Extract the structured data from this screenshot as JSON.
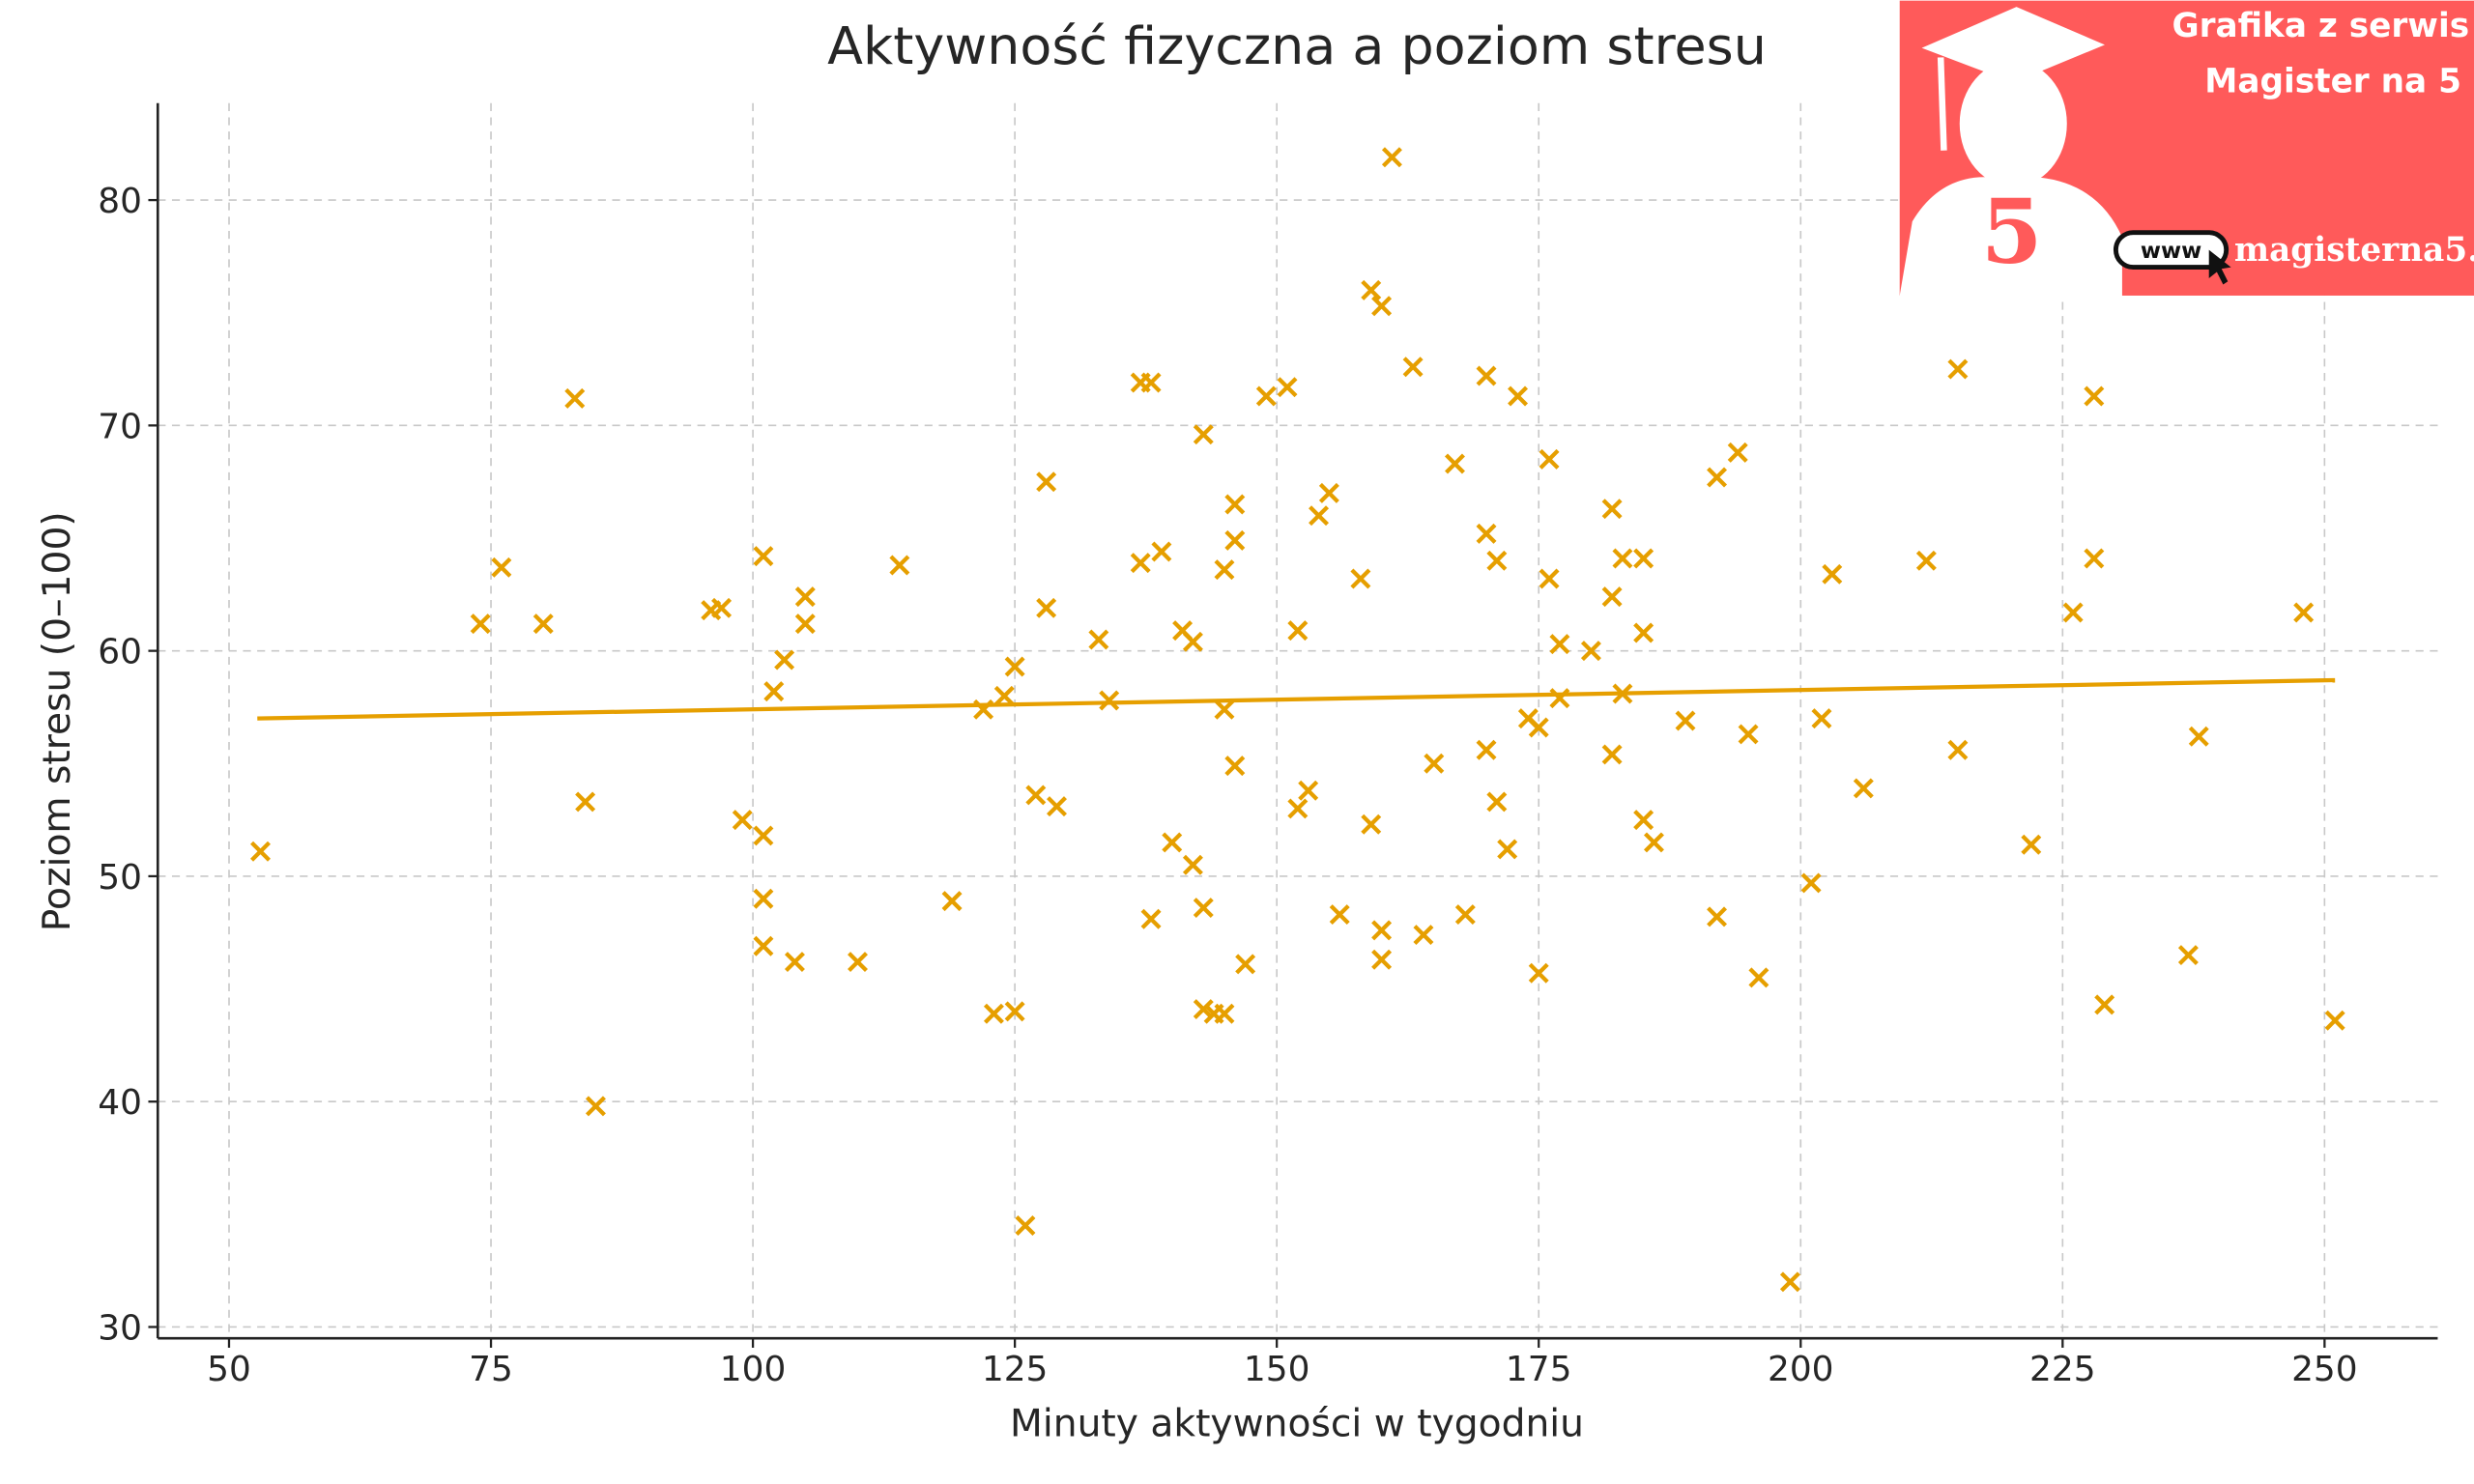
{
  "chart_data": {
    "type": "scatter",
    "title": "Aktywność fizyczna a poziom stresu",
    "xlabel": "Minuty aktywności w tygodniu",
    "ylabel": "Poziom stresu (0–100)",
    "color": "#E69F00",
    "marker": "x",
    "grid": true,
    "xlim": [
      43.2,
      260.8
    ],
    "ylim": [
      29.5,
      84.3
    ],
    "xticks": [
      50,
      75,
      100,
      125,
      150,
      175,
      200,
      225,
      250
    ],
    "yticks": [
      30,
      40,
      50,
      60,
      70,
      80
    ],
    "x": [
      53,
      74,
      76,
      80,
      83,
      84,
      85,
      96,
      97,
      99,
      101,
      101,
      101,
      101,
      102,
      103,
      104,
      105,
      105,
      110,
      114,
      119,
      122,
      123,
      124,
      125,
      125,
      126,
      127,
      128,
      128,
      129,
      133,
      134,
      137,
      137,
      138,
      138,
      139,
      140,
      141,
      142,
      142,
      143,
      143,
      143,
      144,
      145,
      145,
      145,
      146,
      146,
      146,
      147,
      149,
      151,
      152,
      152,
      153,
      154,
      155,
      156,
      158,
      159,
      159,
      160,
      160,
      160,
      161,
      163,
      164,
      165,
      167,
      168,
      170,
      170,
      170,
      171,
      171,
      172,
      173,
      174,
      175,
      175,
      176,
      176,
      177,
      177,
      180,
      182,
      182,
      182,
      183,
      183,
      185,
      185,
      185,
      186,
      189,
      192,
      192,
      194,
      195,
      196,
      199,
      201,
      202,
      203,
      206,
      212,
      215,
      215,
      222,
      226,
      228,
      228,
      229,
      237,
      238,
      248,
      251
    ],
    "values": [
      51.1,
      61.2,
      63.7,
      61.2,
      71.2,
      53.3,
      39.8,
      61.8,
      61.9,
      52.5,
      64.2,
      51.8,
      49.0,
      46.9,
      58.2,
      59.6,
      46.2,
      62.4,
      61.2,
      46.2,
      63.8,
      48.9,
      57.4,
      43.9,
      58.0,
      44.0,
      59.3,
      34.5,
      53.6,
      61.9,
      67.5,
      53.1,
      60.5,
      57.8,
      63.9,
      71.9,
      71.9,
      48.1,
      64.4,
      51.5,
      60.9,
      60.4,
      50.5,
      69.6,
      48.6,
      44.1,
      43.9,
      43.9,
      63.6,
      57.4,
      66.5,
      64.9,
      54.9,
      46.1,
      71.3,
      71.7,
      60.9,
      53.0,
      53.8,
      66.0,
      67.0,
      48.3,
      63.2,
      76.0,
      52.3,
      75.3,
      47.6,
      46.3,
      81.9,
      72.6,
      47.4,
      55.0,
      68.3,
      48.3,
      72.2,
      65.2,
      55.6,
      64.0,
      53.3,
      51.2,
      71.3,
      57.0,
      45.7,
      56.6,
      68.5,
      63.2,
      60.3,
      57.9,
      60.0,
      66.3,
      62.4,
      55.4,
      64.1,
      58.1,
      64.1,
      60.8,
      52.5,
      51.5,
      56.9,
      67.7,
      48.2,
      68.8,
      56.3,
      45.5,
      32.0,
      49.7,
      57.0,
      63.4,
      53.9,
      64.0,
      72.5,
      55.6,
      51.4,
      61.7,
      64.1,
      71.3,
      44.3,
      46.5,
      56.2,
      61.7,
      43.6
    ],
    "trend_line": {
      "x": [
        52.7,
        251
      ],
      "y": [
        57.0,
        58.7
      ],
      "color": "#E69F00"
    }
  },
  "watermark": {
    "line1": "Grafika z serwis",
    "line2": "Magister na 5",
    "digit": "5",
    "www": "www",
    "url": "magisterna5."
  }
}
